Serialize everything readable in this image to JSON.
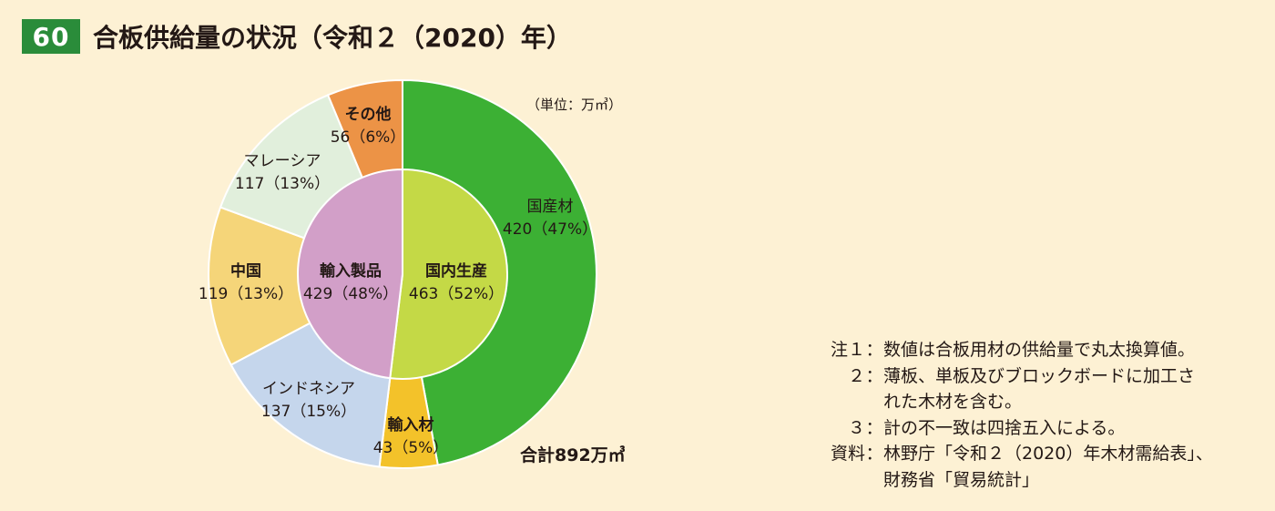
{
  "header": {
    "figure_number": "60",
    "title": "合板供給量の状況（令和２（2020）年）"
  },
  "unit": "（単位：万㎥）",
  "total": "合計892万㎥",
  "colors": {
    "domestic_timber": "#3cb034",
    "imported_timber": "#f3c22a",
    "indonesia": "#c5d6ec",
    "china": "#f5d579",
    "malaysia": "#e1efdc",
    "other": "#ec9346",
    "domestic_production": "#c4d946",
    "imported_products": "#d29fc8"
  },
  "chart_data": {
    "type": "donut",
    "title": "合板供給量の状況（令和２（2020）年）",
    "unit": "（単位：万㎥）",
    "total": "合計892万㎥",
    "inner": [
      {
        "name": "国内生産",
        "value": 463,
        "percent": 52,
        "label_value": "463（52%）",
        "color": "#c4d946"
      },
      {
        "name": "輸入製品",
        "value": 429,
        "percent": 48,
        "label_value": "429（48%）",
        "color": "#d29fc8"
      }
    ],
    "outer": [
      {
        "name": "国産材",
        "value": 420,
        "percent": 47,
        "label_value": "420（47%）",
        "color": "#3cb034"
      },
      {
        "name": "輸入材",
        "value": 43,
        "percent": 5,
        "label_value": "43（5%）",
        "color": "#f3c22a"
      },
      {
        "name": "インドネシア",
        "value": 137,
        "percent": 15,
        "label_value": "137（15%）",
        "color": "#c5d6ec"
      },
      {
        "name": "中国",
        "value": 119,
        "percent": 13,
        "label_value": "119（13%）",
        "color": "#f5d579"
      },
      {
        "name": "マレーシア",
        "value": 117,
        "percent": 13,
        "label_value": "117（13%）",
        "color": "#e1efdc"
      },
      {
        "name": "その他",
        "value": 56,
        "percent": 6,
        "label_value": "56（6%）",
        "color": "#ec9346"
      }
    ]
  },
  "notes": [
    {
      "label": "注１",
      "sep": "：",
      "lines": [
        "数値は合板用材の供給量で丸太換算値。"
      ]
    },
    {
      "label": "２",
      "sep": "：",
      "lines": [
        "薄板、単板及びブロックボードに加工さ",
        "れた木材を含む。"
      ]
    },
    {
      "label": "３",
      "sep": "：",
      "lines": [
        "計の不一致は四捨五入による。"
      ]
    },
    {
      "label": "資料",
      "sep": "：",
      "lines": [
        "林野庁「令和２（2020）年木材需給表」、",
        "財務省「貿易統計」"
      ]
    }
  ]
}
